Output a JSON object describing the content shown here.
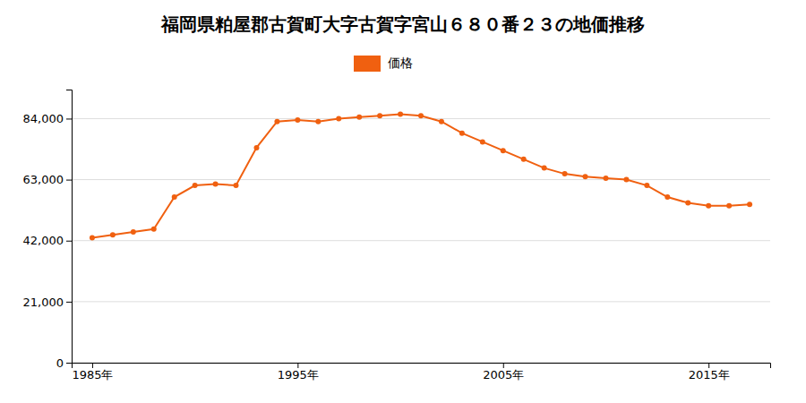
{
  "chart_data": {
    "type": "line",
    "title": "福岡県粕屋郡古賀町大字古賀字宮山６８０番２３の地価推移",
    "x": [
      1985,
      1986,
      1987,
      1988,
      1989,
      1990,
      1991,
      1992,
      1993,
      1994,
      1995,
      1996,
      1997,
      1998,
      1999,
      2000,
      2001,
      2002,
      2003,
      2004,
      2005,
      2006,
      2007,
      2008,
      2009,
      2010,
      2011,
      2012,
      2013,
      2014,
      2015,
      2016,
      2017
    ],
    "series": [
      {
        "name": "価格",
        "color": "#f06010",
        "marker": "circle",
        "values": [
          43000,
          44000,
          45000,
          46000,
          57000,
          61000,
          61500,
          61000,
          74000,
          83000,
          83500,
          83000,
          84000,
          84500,
          85000,
          85500,
          85000,
          83000,
          79000,
          76000,
          73000,
          70000,
          67000,
          65000,
          64000,
          63500,
          63000,
          61000,
          57000,
          55000,
          54000,
          54000,
          54500
        ]
      }
    ],
    "xlim": [
      1984,
      2018
    ],
    "xticks": [
      {
        "value": 1985,
        "label": "1985年"
      },
      {
        "value": 1995,
        "label": "1995年"
      },
      {
        "value": 2005,
        "label": "2005年"
      },
      {
        "value": 2015,
        "label": "2015年"
      }
    ],
    "ylim": [
      0,
      94000
    ],
    "yticks": [
      0,
      {
        "value": 21000,
        "label": "21,000"
      },
      {
        "value": 42000,
        "label": "42,000"
      },
      {
        "value": 63000,
        "label": "63,000"
      },
      {
        "value": 84000,
        "label": "84,000"
      }
    ],
    "grid": true,
    "legend": "top"
  }
}
